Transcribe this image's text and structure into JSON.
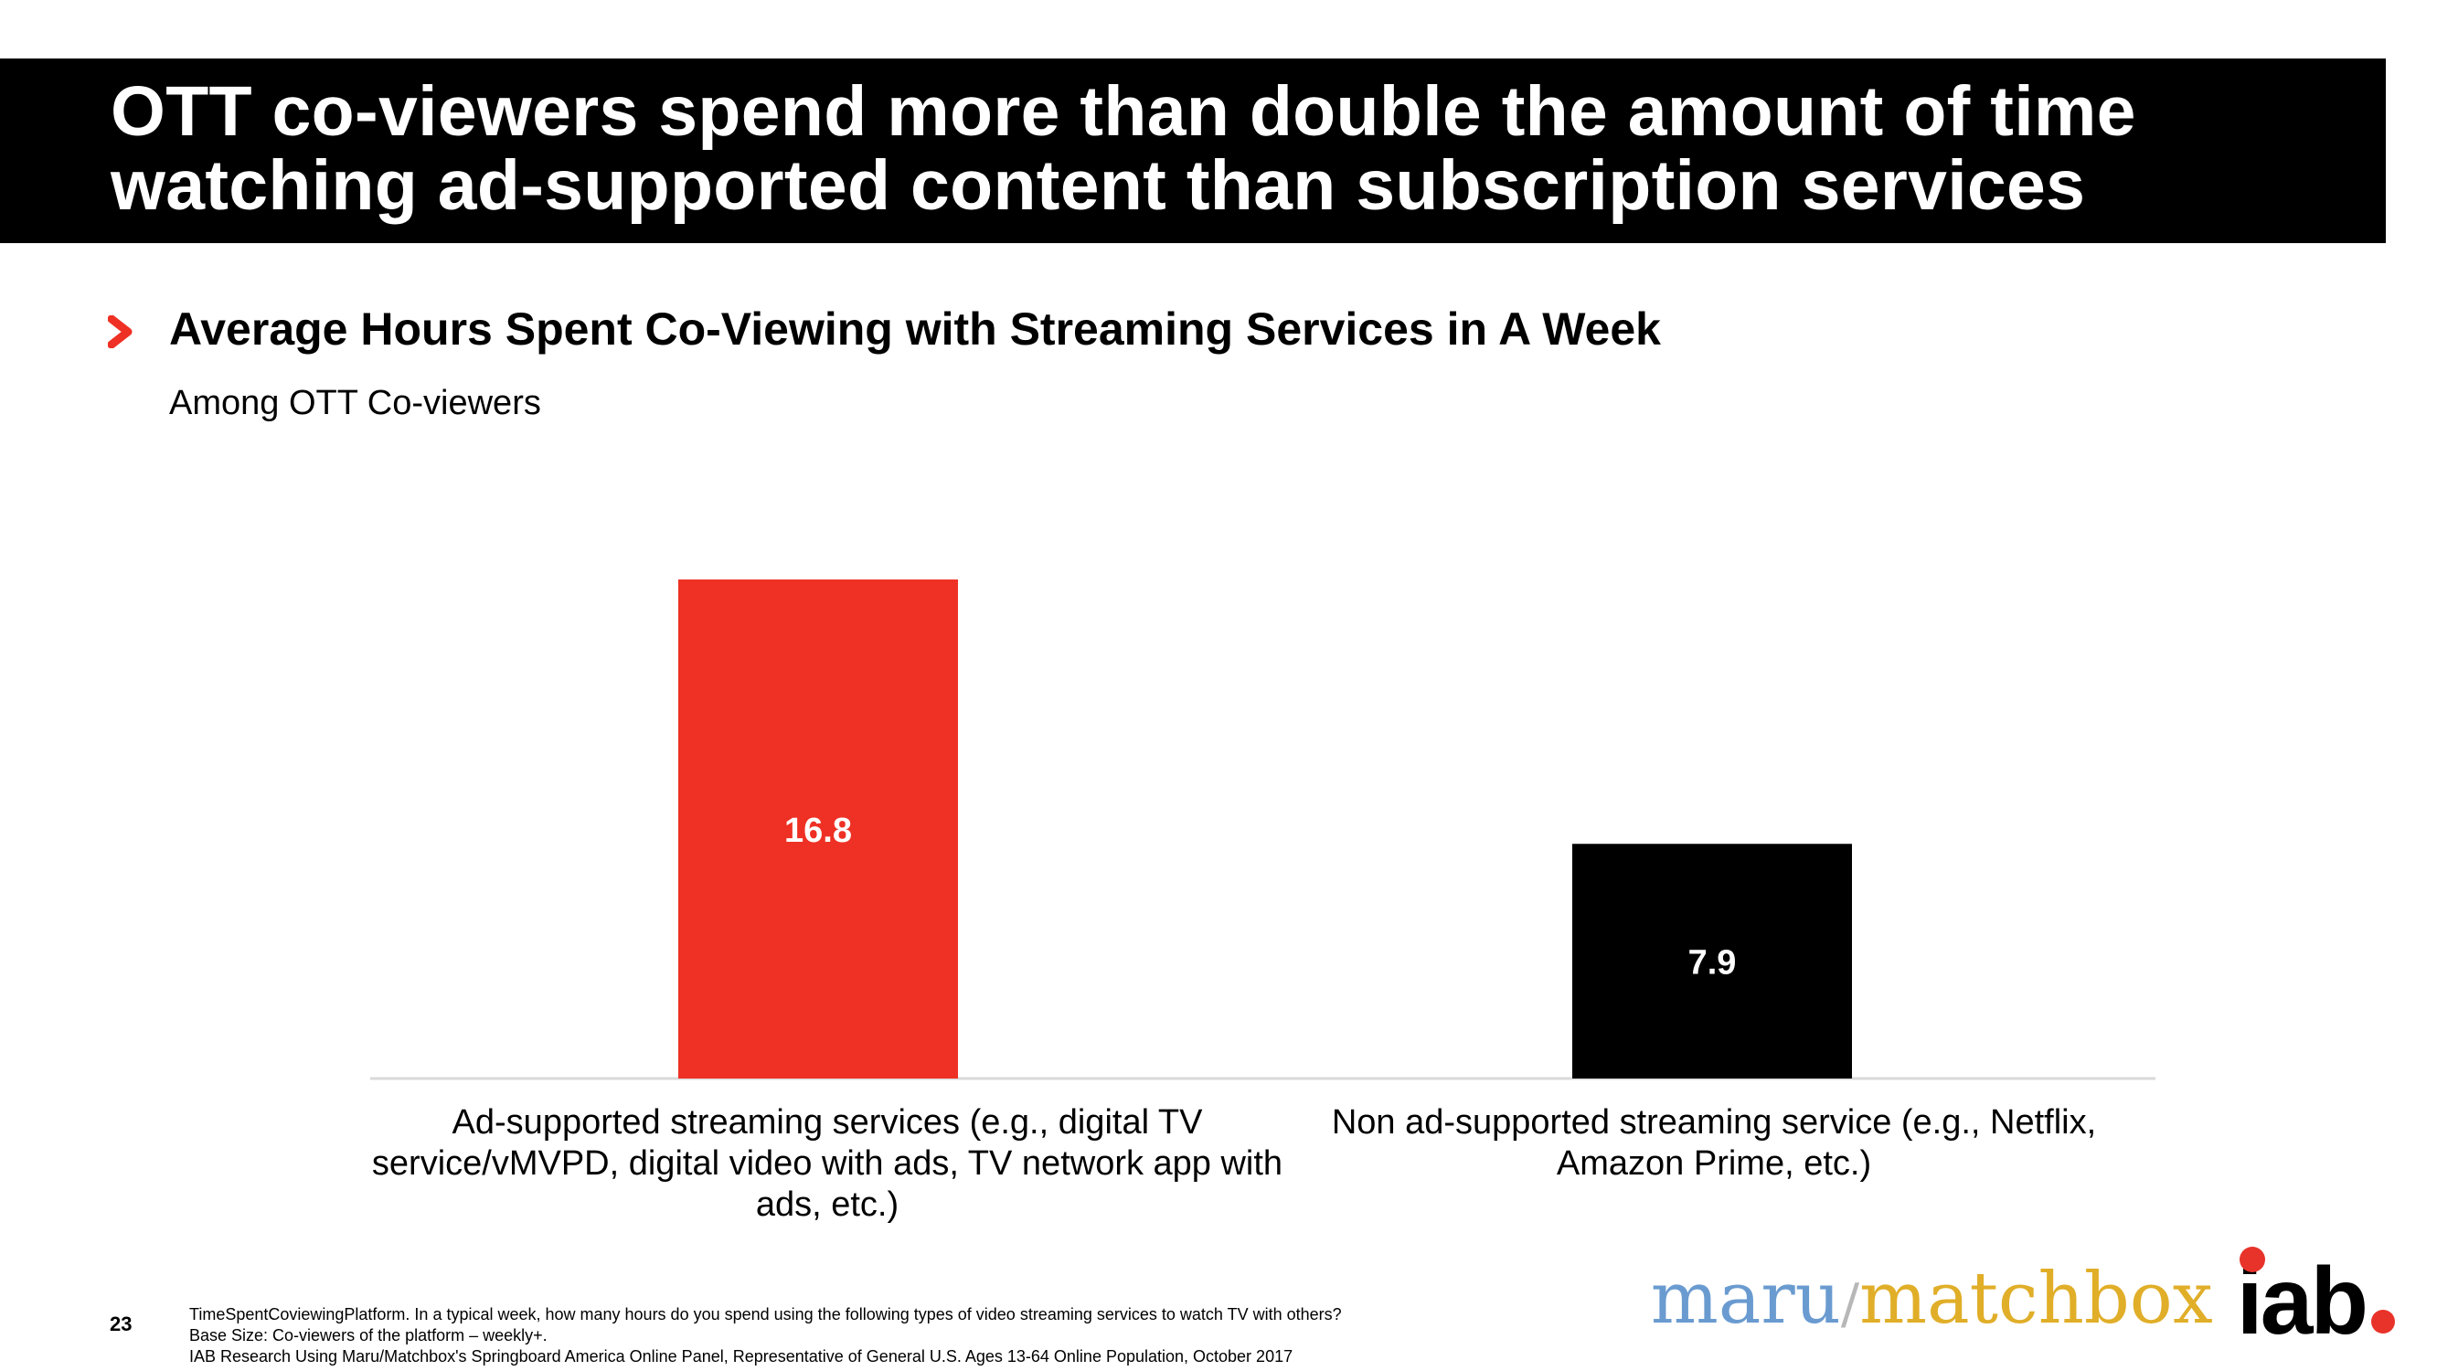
{
  "slide": {
    "title_line1": "OTT co-viewers spend more than double the amount of time",
    "title_line2": "watching ad-supported content than subscription services",
    "page_number": "23"
  },
  "chart_data": {
    "type": "bar",
    "title": "Average Hours Spent Co-Viewing with Streaming Services in A Week",
    "subtitle": "Among OTT Co-viewers",
    "categories": [
      "Ad-supported streaming services (e.g., digital TV service/vMVPD, digital video with ads, TV network app with ads, etc.)",
      "Non ad-supported streaming service (e.g., Netflix, Amazon Prime, etc.)"
    ],
    "values": [
      16.8,
      7.9
    ],
    "data_labels": [
      "16.8",
      "7.9"
    ],
    "bar_colors": [
      "#ee3124",
      "#000000"
    ],
    "xlabel": "",
    "ylabel": "",
    "ylim": [
      0,
      20
    ],
    "grid": false,
    "legend": "none"
  },
  "footnotes": {
    "line1": "TimeSpentCoviewingPlatform. In a typical week, how many hours do you spend using the following types of video streaming services to watch TV with others?",
    "line2": "Base Size: Co-viewers of the platform – weekly+.",
    "line3": "IAB Research Using Maru/Matchbox's Springboard America Online Panel, Representative of General U.S. Ages 13-64 Online Population, October 2017"
  },
  "logos": {
    "maru": "maru",
    "slash": "/",
    "matchbox": "matchbox",
    "iab": "iab",
    "maru_color": "#6a9bd0",
    "matchbox_color": "#e0ae28",
    "iab_accent": "#e8332a"
  },
  "bullet_icon": "chevron-bullet-icon",
  "colors": {
    "accent": "#ee3124",
    "title_bar": "#000000",
    "axis_line": "#d9d9d9"
  }
}
